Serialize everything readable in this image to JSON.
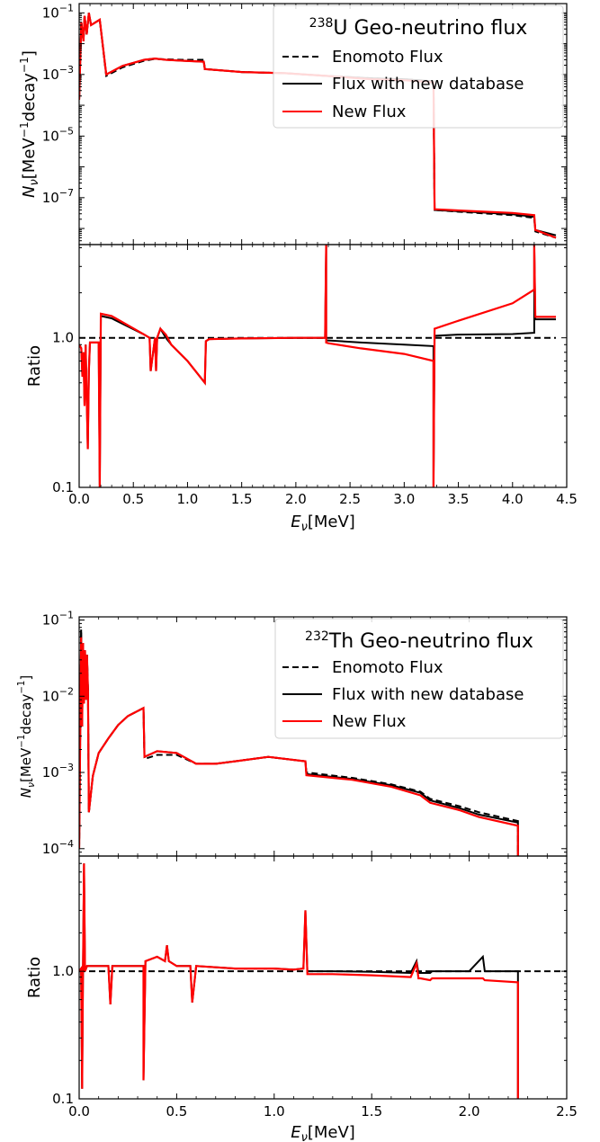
{
  "chart_data": [
    {
      "type": "line",
      "title_sup": "238",
      "title_main": "U Geo-neutrino flux",
      "legend_position": "upper-right",
      "xlim": [
        0,
        4.5
      ],
      "xticks": [
        "0.0",
        "0.5",
        "1.0",
        "1.5",
        "2.0",
        "2.5",
        "3.0",
        "3.5",
        "4.0",
        "4.5"
      ],
      "xlabel": {
        "main": "E",
        "sub": "ν",
        "unit": "[MeV]"
      },
      "top_panel": {
        "yscale": "log",
        "ylim": [
          3e-09,
          0.2
        ],
        "ylabel": {
          "main": "N",
          "sub": "ν",
          "unit": "[MeV",
          "unit_sup1": "−1",
          "unit_mid": "decay",
          "unit_sup2": "−1",
          "unit_end": "]"
        },
        "yticks": [
          {
            "value": 0.1,
            "base": "10",
            "exp": "−1"
          },
          {
            "value": 0.001,
            "base": "10",
            "exp": "−3"
          },
          {
            "value": 1e-05,
            "base": "10",
            "exp": "−5"
          },
          {
            "value": 1e-07,
            "base": "10",
            "exp": "−7"
          }
        ]
      },
      "bottom_panel": {
        "yscale": "log",
        "ylim": [
          0.1,
          4.2
        ],
        "ylabel": "Ratio",
        "yticks": [
          {
            "value": 1.0,
            "label": "1.0"
          },
          {
            "value": 0.1,
            "label": "0.1"
          }
        ]
      },
      "series": [
        {
          "name": "Enomoto Flux",
          "color": "#000000",
          "style": "dashed",
          "x": [
            0.0,
            0.02,
            0.04,
            0.05,
            0.07,
            0.09,
            0.11,
            0.19,
            0.25,
            0.4,
            0.6,
            0.7,
            0.8,
            0.95,
            1.15,
            1.16,
            1.5,
            1.9,
            2.28,
            2.7,
            3.0,
            3.27,
            3.28,
            3.6,
            4.0,
            4.2,
            4.21,
            4.4
          ],
          "y": [
            0.00015,
            0.05,
            0.012,
            0.08,
            0.02,
            0.1,
            0.04,
            0.06,
            0.0009,
            0.0017,
            0.0028,
            0.0032,
            0.0031,
            0.003,
            0.003,
            0.0015,
            0.0012,
            0.0011,
            0.0009,
            0.00075,
            0.0007,
            0.0006,
            4e-08,
            3.3e-08,
            2.7e-08,
            2.2e-08,
            8e-09,
            5e-09
          ]
        },
        {
          "name": "Flux with new database",
          "color": "#000000",
          "style": "solid",
          "x": [
            0.0,
            0.02,
            0.04,
            0.05,
            0.07,
            0.09,
            0.11,
            0.19,
            0.25,
            0.4,
            0.6,
            0.7,
            0.8,
            0.95,
            1.15,
            1.16,
            1.5,
            1.9,
            2.28,
            2.7,
            3.0,
            3.27,
            3.28,
            3.6,
            4.0,
            4.2,
            4.21,
            4.4
          ],
          "y": [
            0.00015,
            0.05,
            0.012,
            0.08,
            0.02,
            0.1,
            0.04,
            0.06,
            0.001,
            0.0019,
            0.003,
            0.0033,
            0.003,
            0.0028,
            0.0026,
            0.0015,
            0.0012,
            0.0011,
            0.0009,
            0.00075,
            0.0007,
            0.0006,
            4e-08,
            3.5e-08,
            2.9e-08,
            2.4e-08,
            9e-09,
            6e-09
          ]
        },
        {
          "name": "New Flux",
          "color": "#ff0000",
          "style": "solid",
          "x": [
            0.0,
            0.02,
            0.04,
            0.05,
            0.07,
            0.09,
            0.11,
            0.19,
            0.25,
            0.4,
            0.6,
            0.7,
            0.8,
            0.95,
            1.15,
            1.16,
            1.5,
            1.9,
            2.28,
            2.7,
            3.0,
            3.27,
            3.28,
            3.6,
            4.0,
            4.2,
            4.21,
            4.4
          ],
          "y": [
            0.00015,
            0.05,
            0.012,
            0.08,
            0.02,
            0.1,
            0.04,
            0.06,
            0.001,
            0.0019,
            0.003,
            0.0033,
            0.003,
            0.0028,
            0.0026,
            0.0015,
            0.0012,
            0.0011,
            0.0009,
            0.0007,
            0.00065,
            0.00055,
            4.2e-08,
            3.7e-08,
            3.2e-08,
            2.7e-08,
            9e-09,
            5e-09
          ]
        }
      ],
      "ratio_series": [
        {
          "name": "Enomoto Flux",
          "color": "#000000",
          "style": "dashed",
          "x": [
            0.0,
            4.4
          ],
          "y": [
            1.0,
            1.0
          ]
        },
        {
          "name": "Flux with new database",
          "color": "#000000",
          "style": "solid",
          "x": [
            0.0,
            0.02,
            0.03,
            0.04,
            0.05,
            0.06,
            0.08,
            0.09,
            0.1,
            0.18,
            0.19,
            0.2,
            0.3,
            0.6,
            0.65,
            0.66,
            0.7,
            0.71,
            0.72,
            0.75,
            0.8,
            0.85,
            1.0,
            1.16,
            1.17,
            1.2,
            1.5,
            2.0,
            2.27,
            2.28,
            2.28,
            2.3,
            2.6,
            3.0,
            3.27,
            3.27,
            3.28,
            3.5,
            4.0,
            4.2,
            4.2,
            4.21,
            4.4
          ],
          "y": [
            0.9,
            0.85,
            0.55,
            0.8,
            0.35,
            0.9,
            0.18,
            0.6,
            0.93,
            0.93,
            0.1,
            1.4,
            1.35,
            1.05,
            1.0,
            0.6,
            1.0,
            0.6,
            1.0,
            1.15,
            1.0,
            0.9,
            0.7,
            0.5,
            0.95,
            0.98,
            0.99,
            1.0,
            1.0,
            4.2,
            0.96,
            0.96,
            0.93,
            0.9,
            0.88,
            0.1,
            1.03,
            1.05,
            1.06,
            1.08,
            4.2,
            1.33,
            1.33
          ]
        },
        {
          "name": "New Flux",
          "color": "#ff0000",
          "style": "solid",
          "x": [
            0.0,
            0.02,
            0.03,
            0.04,
            0.05,
            0.06,
            0.08,
            0.09,
            0.1,
            0.18,
            0.19,
            0.2,
            0.3,
            0.6,
            0.65,
            0.66,
            0.7,
            0.71,
            0.72,
            0.75,
            0.8,
            0.85,
            1.0,
            1.16,
            1.17,
            1.2,
            1.5,
            2.0,
            2.27,
            2.28,
            2.28,
            2.3,
            2.6,
            3.0,
            3.27,
            3.27,
            3.28,
            3.5,
            4.0,
            4.2,
            4.2,
            4.21,
            4.4
          ],
          "y": [
            0.9,
            0.85,
            0.55,
            0.8,
            0.35,
            0.9,
            0.18,
            0.6,
            0.93,
            0.93,
            0.1,
            1.45,
            1.4,
            1.05,
            1.0,
            0.6,
            1.0,
            0.6,
            1.0,
            1.15,
            1.05,
            0.9,
            0.7,
            0.5,
            0.95,
            0.98,
            0.99,
            1.0,
            1.0,
            4.2,
            0.93,
            0.92,
            0.85,
            0.78,
            0.7,
            0.1,
            1.15,
            1.3,
            1.7,
            2.1,
            4.2,
            1.38,
            1.38
          ]
        }
      ]
    },
    {
      "type": "line",
      "title_sup": "232",
      "title_main": "Th Geo-neutrino flux",
      "legend_position": "upper-right",
      "xlim": [
        0,
        2.5
      ],
      "xticks": [
        "0.0",
        "0.5",
        "1.0",
        "1.5",
        "2.0",
        "2.5"
      ],
      "xlabel": {
        "main": "E",
        "sub": "ν",
        "unit": "[MeV]"
      },
      "top_panel": {
        "yscale": "log",
        "ylim": [
          8e-05,
          0.11
        ],
        "ylabel": {
          "main": "N",
          "sub": "ν",
          "unit": "[MeV",
          "unit_sup1": "−1",
          "unit_mid": "decay",
          "unit_sup2": "−1",
          "unit_end": "]"
        },
        "yticks": [
          {
            "value": 0.1,
            "base": "10",
            "exp": "−1"
          },
          {
            "value": 0.01,
            "base": "10",
            "exp": "−2"
          },
          {
            "value": 0.001,
            "base": "10",
            "exp": "−3"
          },
          {
            "value": 0.0001,
            "base": "10",
            "exp": "−4"
          }
        ]
      },
      "bottom_panel": {
        "yscale": "log",
        "ylim": [
          0.1,
          8
        ],
        "ylabel": "Ratio",
        "yticks": [
          {
            "value": 1.0,
            "label": "1.0"
          },
          {
            "value": 0.1,
            "label": "0.1"
          }
        ]
      },
      "series": [
        {
          "name": "Enomoto Flux",
          "color": "#000000",
          "style": "dashed",
          "x": [
            0.0,
            0.01,
            0.015,
            0.02,
            0.025,
            0.03,
            0.035,
            0.04,
            0.045,
            0.05,
            0.07,
            0.1,
            0.15,
            0.2,
            0.25,
            0.33,
            0.335,
            0.4,
            0.5,
            0.6,
            0.7,
            0.8,
            0.97,
            1.16,
            1.165,
            1.4,
            1.6,
            1.75,
            1.8,
            1.95,
            2.05,
            2.25,
            2.25
          ],
          "y": [
            0.0001,
            0.07,
            0.004,
            0.05,
            0.008,
            0.04,
            0.009,
            0.035,
            0.012,
            0.0003,
            0.0009,
            0.0018,
            0.0028,
            0.0042,
            0.0055,
            0.007,
            0.0015,
            0.0017,
            0.0017,
            0.0013,
            0.0013,
            0.0014,
            0.0016,
            0.0014,
            0.001,
            0.00085,
            0.0007,
            0.00056,
            0.00045,
            0.00036,
            0.0003,
            0.00023,
            8e-05
          ]
        },
        {
          "name": "Flux with new database",
          "color": "#000000",
          "style": "solid",
          "x": [
            0.0,
            0.01,
            0.015,
            0.02,
            0.025,
            0.03,
            0.035,
            0.04,
            0.045,
            0.05,
            0.07,
            0.1,
            0.15,
            0.2,
            0.25,
            0.33,
            0.335,
            0.4,
            0.5,
            0.6,
            0.7,
            0.8,
            0.97,
            1.16,
            1.165,
            1.4,
            1.6,
            1.75,
            1.8,
            1.95,
            2.05,
            2.25,
            2.25
          ],
          "y": [
            0.0001,
            0.075,
            0.004,
            0.05,
            0.008,
            0.04,
            0.009,
            0.035,
            0.012,
            0.0003,
            0.0009,
            0.0018,
            0.0028,
            0.0042,
            0.0055,
            0.007,
            0.0016,
            0.0019,
            0.0018,
            0.0013,
            0.0013,
            0.0014,
            0.0016,
            0.0014,
            0.00095,
            0.00082,
            0.00068,
            0.00054,
            0.00043,
            0.00034,
            0.00028,
            0.00022,
            8e-05
          ]
        },
        {
          "name": "New Flux",
          "color": "#ff0000",
          "style": "solid",
          "x": [
            0.0,
            0.01,
            0.015,
            0.02,
            0.025,
            0.03,
            0.035,
            0.04,
            0.045,
            0.05,
            0.07,
            0.1,
            0.15,
            0.2,
            0.25,
            0.33,
            0.335,
            0.4,
            0.5,
            0.6,
            0.7,
            0.8,
            0.97,
            1.16,
            1.165,
            1.4,
            1.6,
            1.75,
            1.8,
            1.95,
            2.05,
            2.25,
            2.25
          ],
          "y": [
            0.0001,
            0.06,
            0.004,
            0.05,
            0.008,
            0.04,
            0.009,
            0.035,
            0.012,
            0.0003,
            0.0009,
            0.0018,
            0.0028,
            0.0042,
            0.0055,
            0.007,
            0.0016,
            0.0019,
            0.0018,
            0.0013,
            0.0013,
            0.0014,
            0.0016,
            0.0014,
            0.00092,
            0.0008,
            0.00065,
            0.0005,
            0.0004,
            0.00032,
            0.00026,
            0.0002,
            8e-05
          ]
        }
      ],
      "ratio_series": [
        {
          "name": "Enomoto Flux",
          "color": "#000000",
          "style": "dashed",
          "x": [
            0.0,
            2.5
          ],
          "y": [
            1.0,
            1.0
          ]
        },
        {
          "name": "Flux with new database",
          "color": "#000000",
          "style": "solid",
          "x": [
            0.0,
            0.01,
            0.015,
            0.02,
            0.025,
            0.03,
            0.04,
            0.1,
            0.15,
            0.16,
            0.17,
            0.3,
            0.33,
            0.33,
            0.34,
            0.4,
            0.44,
            0.45,
            0.46,
            0.5,
            0.57,
            0.58,
            0.6,
            0.8,
            0.97,
            1.0,
            1.1,
            1.15,
            1.16,
            1.17,
            1.3,
            1.5,
            1.7,
            1.73,
            1.74,
            1.75,
            1.8,
            1.81,
            2.0,
            2.07,
            2.08,
            2.25,
            2.25
          ],
          "y": [
            1.0,
            1.05,
            0.12,
            1.1,
            7.0,
            1.0,
            1.1,
            1.1,
            1.1,
            0.55,
            1.1,
            1.1,
            1.1,
            0.14,
            1.2,
            1.3,
            1.2,
            1.6,
            1.2,
            1.1,
            1.1,
            0.57,
            1.1,
            1.05,
            1.05,
            1.05,
            1.03,
            1.05,
            3.0,
            1.0,
            1.0,
            0.99,
            0.97,
            1.2,
            0.97,
            0.97,
            0.97,
            1.0,
            1.0,
            1.3,
            1.0,
            1.0,
            0.1
          ]
        },
        {
          "name": "New Flux",
          "color": "#ff0000",
          "style": "solid",
          "x": [
            0.0,
            0.01,
            0.015,
            0.02,
            0.025,
            0.03,
            0.04,
            0.1,
            0.15,
            0.16,
            0.17,
            0.3,
            0.33,
            0.33,
            0.34,
            0.4,
            0.44,
            0.45,
            0.46,
            0.5,
            0.57,
            0.58,
            0.6,
            0.8,
            0.97,
            1.0,
            1.1,
            1.15,
            1.16,
            1.17,
            1.3,
            1.5,
            1.7,
            1.73,
            1.74,
            1.75,
            1.8,
            1.81,
            2.0,
            2.07,
            2.08,
            2.25,
            2.25
          ],
          "y": [
            1.0,
            1.05,
            0.12,
            1.1,
            7.0,
            1.0,
            1.1,
            1.1,
            1.1,
            0.55,
            1.1,
            1.1,
            1.1,
            0.14,
            1.2,
            1.3,
            1.2,
            1.6,
            1.2,
            1.1,
            1.1,
            0.57,
            1.1,
            1.05,
            1.05,
            1.05,
            1.03,
            1.05,
            3.0,
            0.95,
            0.95,
            0.93,
            0.9,
            1.15,
            0.88,
            0.88,
            0.85,
            0.88,
            0.88,
            0.88,
            0.85,
            0.82,
            0.1
          ]
        }
      ]
    }
  ]
}
